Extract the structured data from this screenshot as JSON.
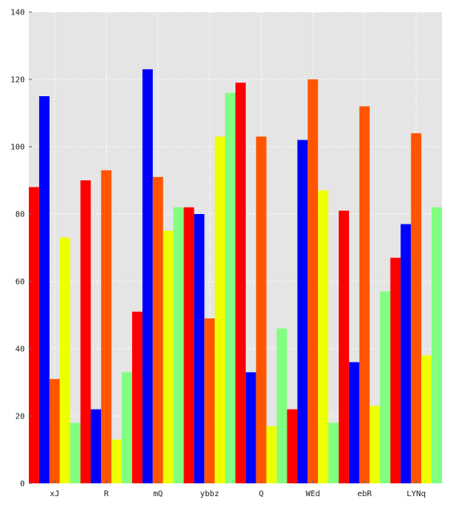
{
  "chart_data": {
    "type": "bar",
    "title": "",
    "xlabel": "",
    "ylabel": "",
    "categories": [
      "xJ",
      "R",
      "mQ",
      "ybbz",
      "Q",
      "WEd",
      "ebR",
      "LYNq"
    ],
    "series": [
      {
        "color": "#ff0000",
        "values": [
          88,
          90,
          51,
          82,
          119,
          22,
          81,
          67
        ]
      },
      {
        "color": "#0000ff",
        "values": [
          115,
          22,
          123,
          80,
          33,
          102,
          36,
          77
        ]
      },
      {
        "color": "#ff5500",
        "values": [
          31,
          93,
          91,
          49,
          103,
          120,
          112,
          104
        ]
      },
      {
        "color": "#eeff00",
        "values": [
          73,
          13,
          75,
          103,
          17,
          87,
          23,
          38
        ]
      },
      {
        "color": "#80ff80",
        "values": [
          18,
          33,
          82,
          116,
          46,
          18,
          57,
          82
        ]
      }
    ],
    "ylim": [
      0,
      140
    ],
    "yticks": [
      "0",
      "20",
      "40",
      "60",
      "80",
      "100",
      "120",
      "140"
    ],
    "grid": true,
    "legend": "none",
    "plot_background": "#e5e5e5"
  }
}
